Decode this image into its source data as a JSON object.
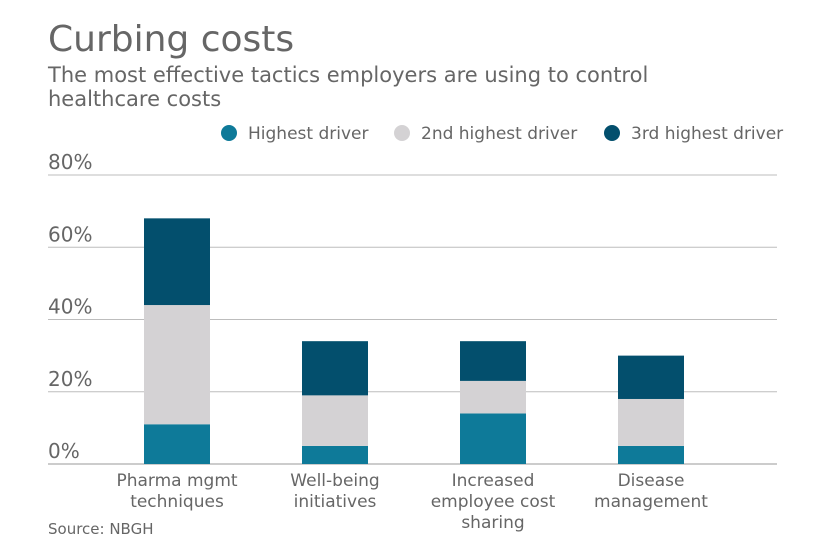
{
  "chart_data": {
    "type": "bar",
    "stacked": true,
    "title": "Curbing costs",
    "subtitle": "The most effective tactics employers are using to control healthcare costs",
    "source": "Source: NBGH",
    "categories": [
      [
        "Pharma mgmt",
        "techniques"
      ],
      [
        "Well-being",
        "initiatives"
      ],
      [
        "Increased",
        "employee cost",
        "sharing"
      ],
      [
        "Disease",
        "management"
      ]
    ],
    "series": [
      {
        "name": "Highest driver",
        "color": "#0e7a99",
        "values": [
          11,
          5,
          14,
          5
        ]
      },
      {
        "name": "2nd highest driver",
        "color": "#d4d2d4",
        "values": [
          33,
          14,
          9,
          13
        ]
      },
      {
        "name": "3rd highest driver",
        "color": "#034f6d",
        "values": [
          24,
          15,
          11,
          12
        ]
      }
    ],
    "yticks": [
      "0%",
      "20%",
      "40%",
      "60%",
      "80%"
    ],
    "ytick_values": [
      0,
      20,
      40,
      60,
      80
    ],
    "ylim": [
      0,
      80
    ],
    "xlabel": "",
    "ylabel": "",
    "grid": true,
    "legend_position": "top-right"
  }
}
